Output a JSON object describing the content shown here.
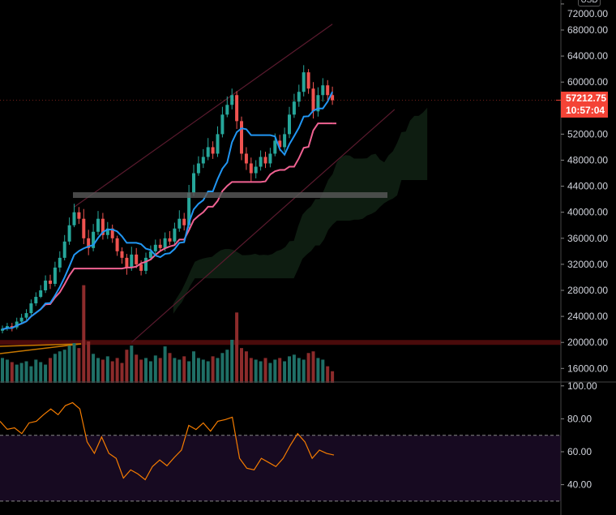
{
  "chart_data": {
    "type": "candlestick",
    "currency": "USD",
    "price_axis": {
      "ticks": [
        72000,
        68000,
        64000,
        60000,
        56000,
        52000,
        48000,
        44000,
        40000,
        36000,
        32000,
        28000,
        24000,
        20000,
        16000
      ],
      "range": [
        14500,
        72500
      ]
    },
    "price_tick_labels": [
      "72000.00",
      "68000.00",
      "64000.00",
      "60000.00",
      "52000.00",
      "48000.00",
      "44000.00",
      "40000.00",
      "36000.00",
      "32000.00",
      "28000.00",
      "24000.00",
      "20000.00",
      "16000.00"
    ],
    "last_price": {
      "value": "57212.75",
      "countdown": "10:57:04",
      "color": "#f44336"
    },
    "candles": {
      "close": [
        22100,
        22500,
        22300,
        23200,
        23800,
        24500,
        26000,
        27000,
        28000,
        29500,
        29000,
        31500,
        33000,
        35500,
        38000,
        40000,
        39000,
        36000,
        34500,
        37000,
        39000,
        36500,
        37500,
        36000,
        34000,
        33000,
        31500,
        33500,
        32000,
        31000,
        33000,
        34000,
        35000,
        34500,
        36000,
        35500,
        37500,
        39000,
        38000,
        43000,
        46000,
        47500,
        48500,
        50000,
        49000,
        52000,
        55000,
        56500,
        58000,
        54000,
        49000,
        47500,
        46000,
        47000,
        48500,
        47500,
        49000,
        51000,
        50000,
        52000,
        55000,
        57000,
        58500,
        61500,
        59000,
        55500,
        58000,
        59500,
        58000,
        57212
      ],
      "open_first": 21800,
      "high": [
        22600,
        23000,
        23000,
        23800,
        24400,
        25100,
        26600,
        27700,
        28800,
        30300,
        30400,
        32400,
        34000,
        36500,
        39200,
        41300,
        40800,
        40500,
        37300,
        38200,
        40200,
        39900,
        38500,
        38100,
        36400,
        34600,
        33600,
        34700,
        34500,
        32600,
        33800,
        34900,
        35800,
        35900,
        36900,
        37100,
        38400,
        40300,
        39900,
        44200,
        47300,
        48600,
        49700,
        51400,
        50900,
        53200,
        56200,
        57800,
        59000,
        58600,
        54700,
        50000,
        48400,
        48000,
        49500,
        49300,
        49900,
        52100,
        51900,
        53000,
        56200,
        58200,
        59600,
        62600,
        62000,
        60000,
        59200,
        60600,
        60300,
        59300
      ],
      "low": [
        21400,
        21800,
        21700,
        22000,
        23000,
        23500,
        24200,
        25600,
        26800,
        27600,
        28200,
        28600,
        30800,
        32600,
        35000,
        37700,
        38200,
        35100,
        33400,
        34000,
        36500,
        35800,
        35900,
        35300,
        33300,
        32100,
        30400,
        31000,
        31400,
        30300,
        30500,
        32600,
        33600,
        34000,
        34000,
        35000,
        35000,
        37000,
        37200,
        37500,
        42500,
        45600,
        46800,
        48000,
        48200,
        48500,
        51500,
        54600,
        55800,
        52800,
        48000,
        46500,
        44700,
        45200,
        46400,
        46800,
        46900,
        48600,
        49400,
        49300,
        51400,
        54500,
        56200,
        57800,
        58200,
        54400,
        54700,
        57000,
        57100,
        56500
      ],
      "volume": [
        30,
        28,
        25,
        22,
        24,
        26,
        20,
        28,
        25,
        22,
        30,
        35,
        38,
        40,
        45,
        48,
        42,
        118,
        50,
        35,
        30,
        28,
        32,
        26,
        30,
        24,
        40,
        45,
        34,
        28,
        30,
        26,
        33,
        30,
        44,
        36,
        30,
        28,
        32,
        26,
        38,
        30,
        28,
        26,
        32,
        30,
        36,
        40,
        52,
        85,
        42,
        38,
        30,
        28,
        26,
        30,
        24,
        28,
        30,
        26,
        32,
        34,
        30,
        28,
        36,
        38,
        30,
        28,
        20,
        14
      ]
    },
    "indicators": {
      "tenkan_period": 9,
      "kijun_period": 26,
      "cloud_displacement": 26,
      "colors": {
        "tenkan": "#2196f3",
        "kijun": "#f06292",
        "cloud": "#0f1f12",
        "volume_up": "#1f6f66",
        "volume_down": "#8c2b2b",
        "up": "#26a69a",
        "down": "#ef5350"
      }
    },
    "drawings": {
      "horizontal_support_price": 20000,
      "gray_zone_price": 42700,
      "channel_upper": [
        [
          40800,
          15
        ],
        [
          68900,
          69
        ]
      ],
      "channel_lower": [
        [
          20000,
          27
        ],
        [
          55800,
          82
        ]
      ]
    },
    "rsi": {
      "axis_ticks": [
        100,
        80,
        60,
        40
      ],
      "axis_tick_labels": [
        "100.00",
        "80.00",
        "60.00",
        "40.00"
      ],
      "upper_band": 70,
      "lower_band": 30,
      "values": [
        78.5,
        73.6,
        74.5,
        71,
        77.5,
        78.5,
        82.5,
        86,
        82.5,
        88,
        89.8,
        86,
        66,
        59,
        69,
        59,
        56,
        44,
        49,
        46.5,
        43,
        51,
        55,
        51.5,
        56.5,
        61,
        76,
        73.5,
        77.5,
        72.5,
        78.5,
        79.5,
        81,
        56,
        50,
        49,
        56,
        53.5,
        51,
        56,
        64,
        71,
        66,
        56,
        61,
        59,
        58
      ],
      "color": "#f57c00",
      "band_fill": "#170a21"
    }
  }
}
